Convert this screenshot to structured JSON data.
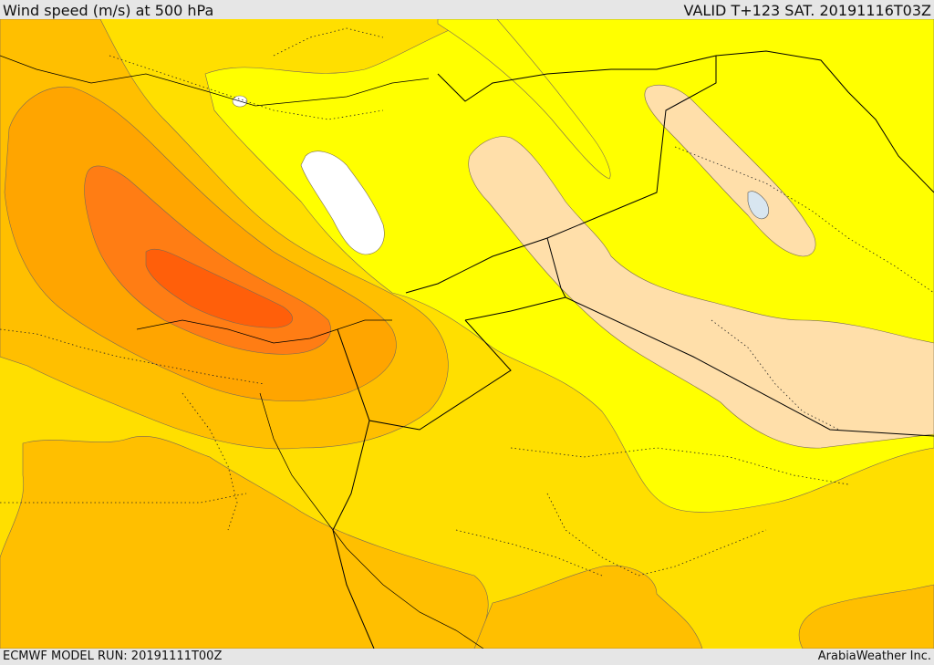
{
  "header": {
    "title": "Wind speed (m/s) at 500 hPa",
    "valid": "VALID T+123 SAT. 20191116T03Z"
  },
  "footer": {
    "model_run": "ECMWF MODEL RUN: 20191111T00Z",
    "credit": "ArabiaWeather Inc."
  },
  "colors": {
    "background": "#e6e6e6",
    "band_light_yellow": "#ffff00",
    "band_yellow": "#ffdf00",
    "band_gold": "#ffbf00",
    "band_orange_light": "#ffa500",
    "band_orange": "#ff7d14",
    "band_orange_dark": "#ff5f0a",
    "band_peach": "#ffdfaa",
    "sea_white": "#ffffff",
    "lake_light_blue": "#d8e6f0",
    "contour_line": "#7a6a55",
    "border_line": "#000000"
  }
}
